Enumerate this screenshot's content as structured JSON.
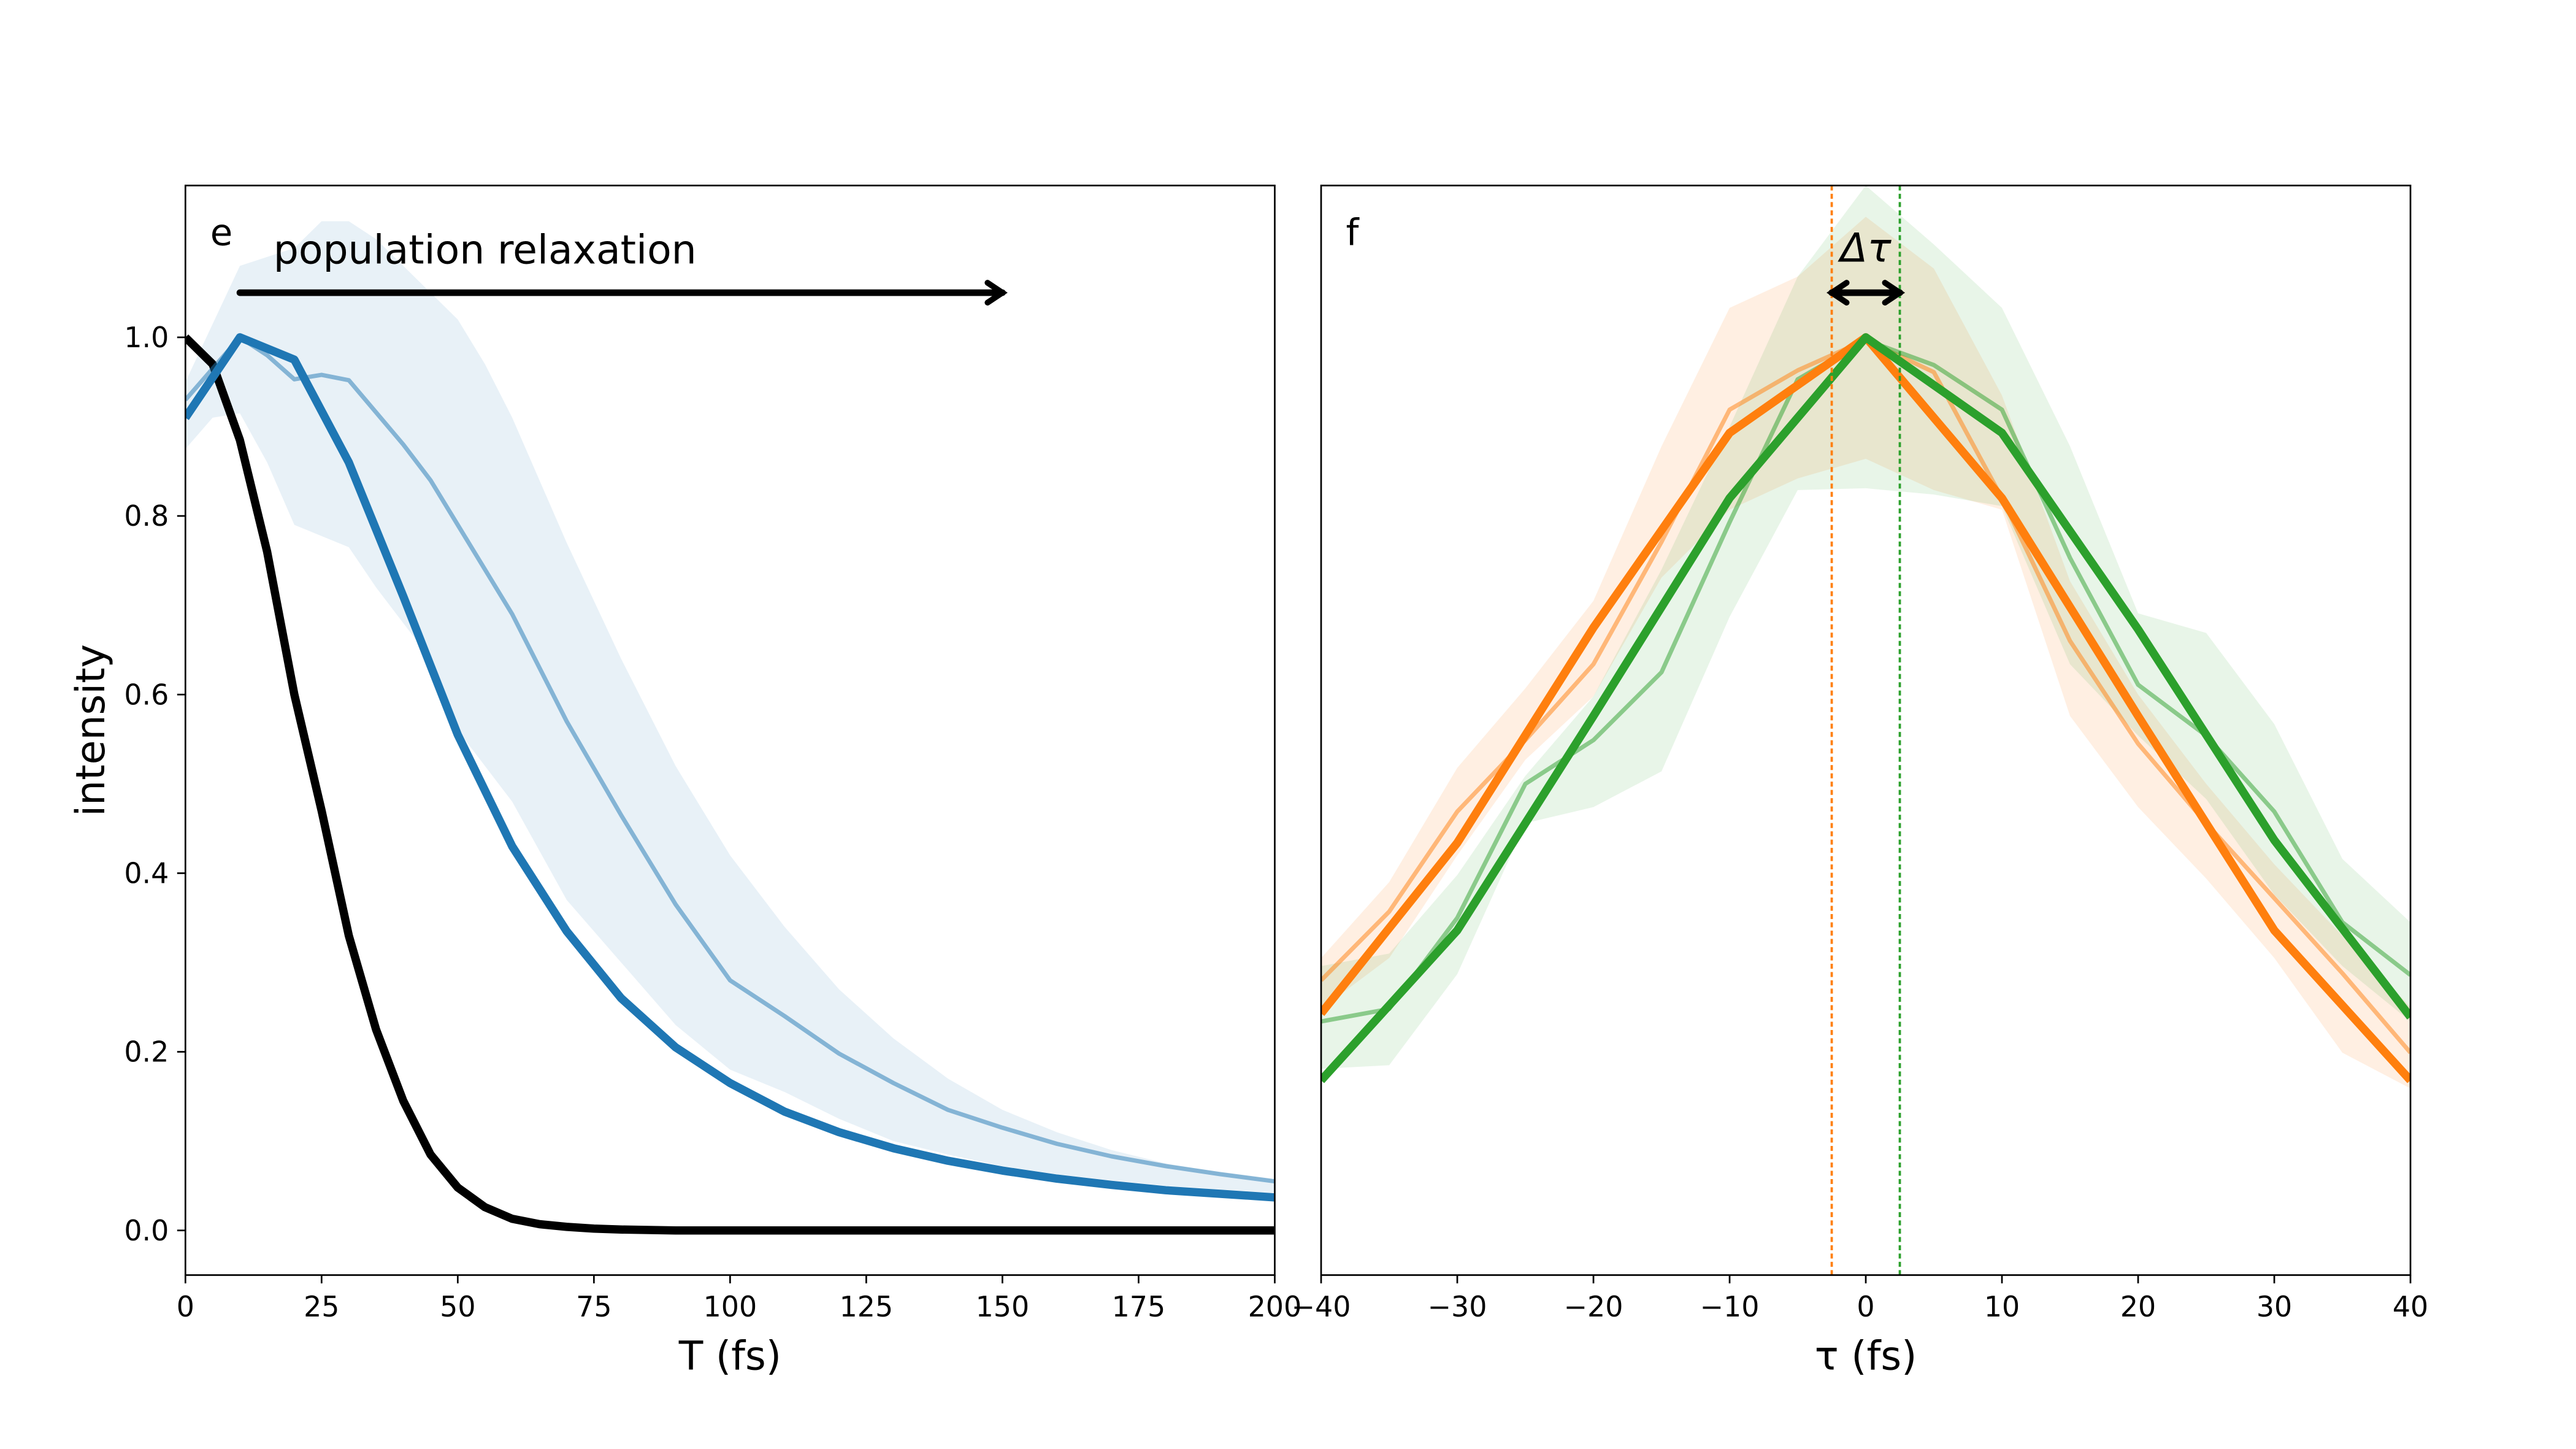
{
  "chart_data": [
    {
      "type": "line",
      "panel_label": "e",
      "xlabel": "T (fs)",
      "ylabel": "intensity",
      "xlim": [
        0,
        200
      ],
      "ylim": [
        -0.05,
        1.17
      ],
      "xticks": [
        "0",
        "25",
        "50",
        "75",
        "100",
        "125",
        "150",
        "175",
        "200"
      ],
      "yticks": [
        "0.0",
        "0.2",
        "0.4",
        "0.6",
        "0.8",
        "1.0"
      ],
      "annotation": {
        "text": "population relaxation",
        "arrow_from": [
          10,
          1.05
        ],
        "arrow_to": [
          150,
          1.05
        ]
      },
      "series": [
        {
          "color": "#000000",
          "style": "thick",
          "x": [
            0,
            5,
            10,
            15,
            20,
            25,
            30,
            35,
            40,
            45,
            50,
            55,
            60,
            65,
            70,
            75,
            80,
            90,
            100,
            125,
            150,
            175,
            200
          ],
          "y": [
            1.0,
            0.97,
            0.885,
            0.76,
            0.6,
            0.47,
            0.33,
            0.225,
            0.145,
            0.085,
            0.048,
            0.026,
            0.013,
            0.007,
            0.004,
            0.002,
            0.001,
            0,
            0,
            0,
            0,
            0,
            0
          ]
        },
        {
          "color": "#1f77b4",
          "style": "thick",
          "x": [
            0,
            10,
            20,
            30,
            40,
            50,
            60,
            70,
            80,
            90,
            100,
            110,
            120,
            130,
            140,
            150,
            160,
            170,
            180,
            190,
            200
          ],
          "y": [
            0.91,
            1.0,
            0.975,
            0.86,
            0.71,
            0.555,
            0.43,
            0.335,
            0.26,
            0.205,
            0.165,
            0.133,
            0.11,
            0.092,
            0.078,
            0.067,
            0.058,
            0.051,
            0.045,
            0.041,
            0.037
          ]
        },
        {
          "color": "#1f77b4",
          "style": "thin",
          "x": [
            0,
            10,
            15,
            20,
            25,
            30,
            40,
            45,
            50,
            60,
            70,
            80,
            90,
            100,
            110,
            120,
            130,
            140,
            150,
            160,
            170,
            180,
            190,
            200
          ],
          "y": [
            0.93,
            1.0,
            0.98,
            0.953,
            0.958,
            0.952,
            0.88,
            0.84,
            0.79,
            0.69,
            0.57,
            0.465,
            0.365,
            0.28,
            0.24,
            0.198,
            0.165,
            0.135,
            0.115,
            0.097,
            0.083,
            0.072,
            0.063,
            0.055
          ]
        }
      ],
      "bands": [
        {
          "color": "#1f77b4",
          "x_upper": [
            0,
            10,
            20,
            25,
            30,
            35,
            50,
            55,
            60,
            70,
            80,
            90,
            100,
            110,
            120,
            130,
            140,
            150,
            160,
            170,
            180,
            190,
            200
          ],
          "upper": [
            0.95,
            1.08,
            1.1,
            1.13,
            1.13,
            1.11,
            1.02,
            0.97,
            0.91,
            0.77,
            0.64,
            0.52,
            0.42,
            0.34,
            0.27,
            0.215,
            0.17,
            0.135,
            0.11,
            0.09,
            0.075,
            0.065,
            0.057
          ],
          "x_lower": [
            0,
            5,
            10,
            15,
            20,
            30,
            35,
            40,
            45,
            50,
            60,
            70,
            80,
            90,
            100,
            110,
            120,
            130,
            140,
            150,
            160,
            170,
            180,
            190,
            200
          ],
          "lower": [
            0.875,
            0.91,
            0.915,
            0.86,
            0.79,
            0.765,
            0.72,
            0.68,
            0.64,
            0.56,
            0.48,
            0.37,
            0.3,
            0.23,
            0.18,
            0.155,
            0.125,
            0.1,
            0.085,
            0.072,
            0.063,
            0.056,
            0.05,
            0.046,
            0.042
          ]
        }
      ]
    },
    {
      "type": "line",
      "panel_label": "f",
      "xlabel": "τ (fs)",
      "xlim": [
        -40,
        40
      ],
      "ylim": [
        -0.05,
        1.17
      ],
      "xticks": [
        "−40",
        "−30",
        "−20",
        "−10",
        "0",
        "10",
        "20",
        "30",
        "40"
      ],
      "annotation": {
        "text": "Δτ",
        "arrow_from": [
          -2.5,
          1.05
        ],
        "arrow_to": [
          2.5,
          1.05
        ]
      },
      "vlines": [
        {
          "x": -2.5,
          "color": "#ff7f0e",
          "style": "dotted"
        },
        {
          "x": 2.5,
          "color": "#2ca02c",
          "style": "dotted"
        }
      ],
      "series": [
        {
          "color": "#ff7f0e",
          "style": "thin",
          "x": [
            -40,
            -35,
            -30,
            -25,
            -20,
            -15,
            -10,
            -5,
            0,
            5,
            10,
            15,
            20,
            25,
            30,
            35,
            40
          ],
          "y": [
            0.28,
            0.357,
            0.469,
            0.549,
            0.634,
            0.771,
            0.919,
            0.963,
            0.997,
            0.961,
            0.82,
            0.66,
            0.545,
            0.456,
            0.372,
            0.288,
            0.199
          ]
        },
        {
          "color": "#2ca02c",
          "style": "thin",
          "x": [
            -40,
            -35,
            -30,
            -25,
            -20,
            -15,
            -10,
            -5,
            0,
            5,
            10,
            15,
            20,
            25,
            30,
            35,
            40
          ],
          "y": [
            0.234,
            0.248,
            0.35,
            0.5,
            0.549,
            0.625,
            0.793,
            0.953,
            0.997,
            0.969,
            0.919,
            0.753,
            0.611,
            0.554,
            0.469,
            0.345,
            0.286
          ]
        },
        {
          "color": "#ff7f0e",
          "style": "thick",
          "x": [
            -40,
            -30,
            -20,
            -10,
            0,
            10,
            20,
            30,
            40
          ],
          "y": [
            0.243,
            0.434,
            0.675,
            0.893,
            1.0,
            0.82,
            0.576,
            0.336,
            0.168
          ]
        },
        {
          "color": "#2ca02c",
          "style": "thick",
          "x": [
            -40,
            -30,
            -20,
            -10,
            0,
            10,
            20,
            30,
            40
          ],
          "y": [
            0.168,
            0.336,
            0.576,
            0.82,
            1.0,
            0.893,
            0.673,
            0.437,
            0.239
          ]
        }
      ],
      "bands": [
        {
          "color": "#ff7f0e",
          "x_upper": [
            -40,
            -35,
            -30,
            -25,
            -20,
            -15,
            -10,
            -5,
            0,
            5,
            10,
            15,
            20,
            25,
            30,
            35,
            40
          ],
          "upper": [
            0.305,
            0.39,
            0.518,
            0.607,
            0.705,
            0.878,
            1.033,
            1.068,
            1.135,
            1.077,
            0.935,
            0.727,
            0.6,
            0.5,
            0.41,
            0.33,
            0.25
          ],
          "x_lower": [
            -40,
            -35,
            -30,
            -25,
            -20,
            -15,
            -10,
            -5,
            0,
            5,
            10,
            15,
            20,
            25,
            30,
            35,
            40
          ],
          "lower": [
            0.248,
            0.305,
            0.42,
            0.527,
            0.598,
            0.731,
            0.807,
            0.842,
            0.864,
            0.829,
            0.807,
            0.576,
            0.474,
            0.394,
            0.305,
            0.199,
            0.159
          ]
        },
        {
          "color": "#2ca02c",
          "x_upper": [
            -40,
            -35,
            -30,
            -25,
            -20,
            -15,
            -10,
            -5,
            0,
            5,
            10,
            15,
            20,
            25,
            30,
            35,
            40
          ],
          "upper": [
            0.296,
            0.31,
            0.398,
            0.509,
            0.598,
            0.74,
            0.9,
            1.068,
            1.17,
            1.104,
            1.033,
            0.878,
            0.691,
            0.669,
            0.567,
            0.416,
            0.345
          ],
          "x_lower": [
            -40,
            -35,
            -30,
            -25,
            -20,
            -15,
            -10,
            -5,
            0,
            5,
            10,
            15,
            20,
            25,
            30,
            35,
            40
          ],
          "lower": [
            0.181,
            0.185,
            0.287,
            0.456,
            0.474,
            0.514,
            0.687,
            0.829,
            0.831,
            0.824,
            0.811,
            0.634,
            0.554,
            0.483,
            0.376,
            0.296,
            0.234
          ]
        }
      ]
    }
  ]
}
